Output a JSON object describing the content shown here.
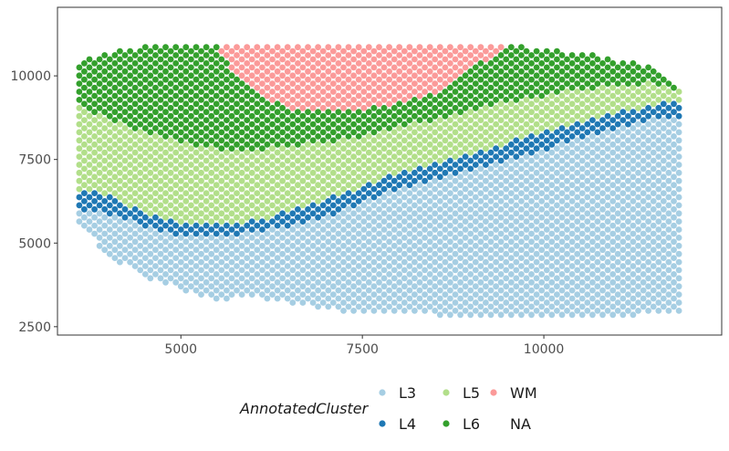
{
  "chart_data": {
    "type": "scatter",
    "title": "",
    "xlabel": "",
    "ylabel": "",
    "xlim": [
      3300,
      12450
    ],
    "ylim": [
      2250,
      12050
    ],
    "x_ticks": [
      5000,
      7500,
      10000
    ],
    "x_tick_labels": [
      "5000",
      "7500",
      "10000"
    ],
    "y_ticks": [
      2500,
      5000,
      7500,
      10000
    ],
    "y_tick_labels": [
      "2500",
      "5000",
      "7500",
      "10000"
    ],
    "grid": false,
    "legend": {
      "title": "AnnotatedCluster",
      "placement": "bottom",
      "entries": [
        {
          "label": "L3",
          "color": "#a6cee3"
        },
        {
          "label": "L4",
          "color": "#1f78b4"
        },
        {
          "label": "L5",
          "color": "#b2df8a"
        },
        {
          "label": "L6",
          "color": "#33a02c"
        },
        {
          "label": "WM",
          "color": "#fb9a99"
        },
        {
          "label": "NA",
          "color": null
        }
      ]
    },
    "spot_spacing": 140,
    "layer_boundaries": {
      "x": [
        3600,
        4000,
        4500,
        5000,
        5500,
        6000,
        6500,
        7000,
        7500,
        8000,
        8500,
        9000,
        9500,
        10000,
        10500,
        11000,
        11500,
        11900
      ],
      "tissue_bottom": [
        5600,
        4600,
        4000,
        3600,
        3300,
        3400,
        3200,
        3000,
        2900,
        2900,
        2850,
        2800,
        2800,
        2800,
        2800,
        2800,
        2900,
        2900
      ],
      "L3_top": [
        6000,
        5900,
        5500,
        5200,
        5200,
        5300,
        5500,
        5800,
        6200,
        6600,
        6900,
        7200,
        7500,
        7800,
        8100,
        8400,
        8700,
        8800
      ],
      "L4_top": [
        6600,
        6400,
        5900,
        5550,
        5550,
        5650,
        5950,
        6300,
        6700,
        7100,
        7400,
        7700,
        8000,
        8300,
        8600,
        8900,
        9100,
        9300
      ],
      "L5_top": [
        9100,
        8700,
        8300,
        8000,
        7800,
        7800,
        7900,
        8000,
        8200,
        8500,
        8700,
        9000,
        9200,
        9400,
        9600,
        9700,
        9800,
        9500
      ],
      "L6_top": [
        10400,
        10700,
        10900,
        10900,
        10900,
        10900,
        10900,
        10900,
        10900,
        10900,
        10900,
        10900,
        10900,
        10800,
        10700,
        10500,
        10300,
        9500
      ],
      "wm_bottom": [
        null,
        null,
        null,
        null,
        10700,
        9500,
        9000,
        9000,
        9000,
        9200,
        9500,
        10200,
        10900,
        null,
        null,
        null,
        null,
        null
      ],
      "wm_top": [
        null,
        null,
        null,
        null,
        11000,
        11050,
        11050,
        11050,
        11050,
        11050,
        11050,
        11000,
        10900,
        null,
        null,
        null,
        null,
        null
      ]
    }
  }
}
